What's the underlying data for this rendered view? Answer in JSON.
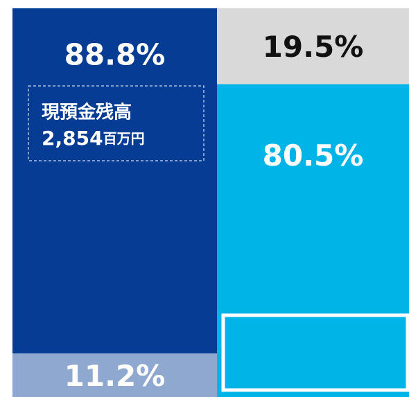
{
  "chart_data": {
    "type": "stacked_bar",
    "categories": [
      null,
      null
    ],
    "ylim": [
      0,
      100
    ],
    "series": [
      {
        "colors": [
          "#8fa8d0",
          "#00b4e8"
        ],
        "label_colors": [
          "#ffffff",
          "#ffffff"
        ],
        "values": [
          11.2,
          80.5
        ],
        "value_labels": [
          "11.2%",
          "80.5%"
        ]
      },
      {
        "colors": [
          "#073c95",
          "#d9d9d9"
        ],
        "label_colors": [
          "#ffffff",
          "#111111"
        ],
        "values": [
          88.8,
          19.5
        ],
        "value_labels": [
          "88.8%",
          "19.5%"
        ]
      }
    ],
    "annotation": {
      "title": "現預金残高",
      "value": "2,854",
      "unit": "百万円"
    }
  }
}
